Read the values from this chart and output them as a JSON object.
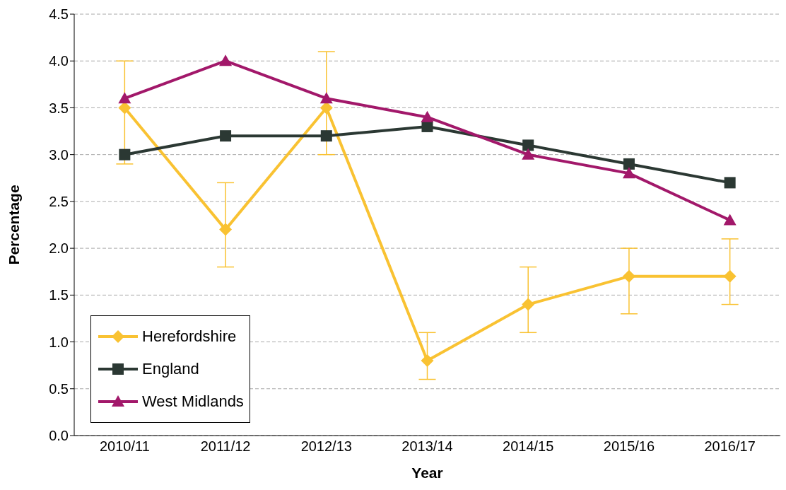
{
  "chart_data": {
    "type": "line",
    "xlabel": "Year",
    "ylabel": "Percentage",
    "categories": [
      "2010/11",
      "2011/12",
      "2012/13",
      "2013/14",
      "2014/15",
      "2015/16",
      "2016/17"
    ],
    "series": [
      {
        "name": "Herefordshire",
        "color": "#f9c232",
        "marker": "diamond",
        "values": [
          3.5,
          2.2,
          3.5,
          0.8,
          1.4,
          1.7,
          1.7
        ],
        "errors": [
          [
            2.9,
            4.0
          ],
          [
            1.8,
            2.7
          ],
          [
            3.0,
            4.1
          ],
          [
            0.6,
            1.1
          ],
          [
            1.1,
            1.8
          ],
          [
            1.3,
            2.0
          ],
          [
            1.4,
            2.1
          ]
        ]
      },
      {
        "name": "England",
        "color": "#2b3833",
        "marker": "square",
        "values": [
          3.0,
          3.2,
          3.2,
          3.3,
          3.1,
          2.9,
          2.7
        ]
      },
      {
        "name": "West Midlands",
        "color": "#a2186a",
        "marker": "triangle",
        "values": [
          3.6,
          4.0,
          3.6,
          3.4,
          3.0,
          2.8,
          2.3
        ]
      }
    ],
    "ylim": [
      0,
      4.5
    ],
    "yticks": [
      {
        "value": 0,
        "label": "0.0"
      },
      {
        "value": 0.5,
        "label": "0.5"
      },
      {
        "value": 1,
        "label": "1.0"
      },
      {
        "value": 1.5,
        "label": "1.5"
      },
      {
        "value": 2,
        "label": "2.0"
      },
      {
        "value": 2.5,
        "label": "2.5"
      },
      {
        "value": 3,
        "label": "3.0"
      },
      {
        "value": 3.5,
        "label": "3.5"
      },
      {
        "value": 4,
        "label": "4.0"
      },
      {
        "value": 4.5,
        "label": "4.5"
      }
    ],
    "grid": "y",
    "legend": "bottom left",
    "line_style": "solid"
  }
}
